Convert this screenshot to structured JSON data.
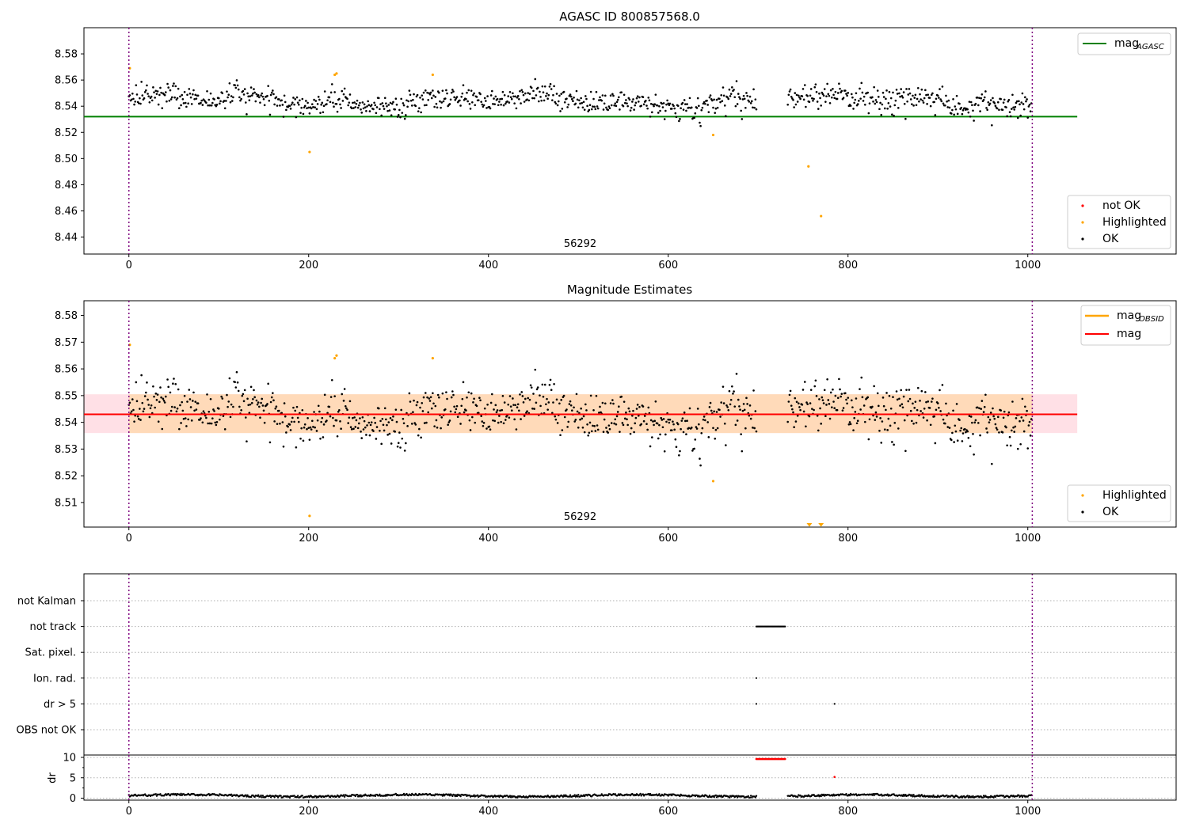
{
  "colors": {
    "ok": "#000000",
    "highlighted": "#ffa500",
    "not_ok": "#ff0000",
    "mag_agasc": "#008000",
    "mag_obsid": "#ffa500",
    "mag": "#ff0000",
    "band_inner": "#ffdab9",
    "band_outer": "#ffe0e6",
    "boundary": "#800080"
  },
  "chart_data": [
    {
      "type": "scatter",
      "title": "AGASC ID 800857568.0",
      "xlim": [
        -50,
        1165
      ],
      "ylim": [
        8.427,
        8.6
      ],
      "xticks": [
        0,
        200,
        400,
        600,
        800,
        1000
      ],
      "yticks": [
        8.44,
        8.46,
        8.48,
        8.5,
        8.52,
        8.54,
        8.56,
        8.58
      ],
      "ytick_labels": [
        "8.44",
        "8.46",
        "8.48",
        "8.50",
        "8.52",
        "8.54",
        "8.56",
        "8.58"
      ],
      "obsid_annotation": "56292",
      "obs_boundaries": [
        0,
        1005
      ],
      "mag_agasc": 8.532,
      "mag_agasc_x_range": [
        -50,
        1055
      ],
      "highlighted_points": [
        [
          1,
          8.569
        ],
        [
          201,
          8.505
        ],
        [
          229,
          8.564
        ],
        [
          231,
          8.565
        ],
        [
          338,
          8.564
        ],
        [
          650,
          8.518
        ],
        [
          756,
          8.494
        ],
        [
          770,
          8.456
        ]
      ],
      "ok_band": {
        "center": 8.544,
        "spread": 0.0065,
        "x_gap": [
          698,
          733
        ]
      },
      "legend_lines": {
        "mag_label": "mag",
        "mag_sub": "AGASC"
      },
      "legend_points": [
        "not OK",
        "Highlighted",
        "OK"
      ]
    },
    {
      "type": "scatter",
      "title": "Magnitude Estimates",
      "xlim": [
        -50,
        1165
      ],
      "ylim": [
        8.5008,
        8.5855
      ],
      "xticks": [
        0,
        200,
        400,
        600,
        800,
        1000
      ],
      "yticks": [
        8.51,
        8.52,
        8.53,
        8.54,
        8.55,
        8.56,
        8.57,
        8.58
      ],
      "obsid_annotation": "56292",
      "obs_boundaries": [
        0,
        1005
      ],
      "mag": 8.543,
      "mag_band_inner": [
        8.536,
        8.5505
      ],
      "mag_band_outer": [
        8.536,
        8.5505
      ],
      "band_x_range": [
        -50,
        1055
      ],
      "highlighted_points": [
        [
          1,
          8.569
        ],
        [
          229,
          8.564
        ],
        [
          231,
          8.565
        ],
        [
          338,
          8.564
        ],
        [
          650,
          8.518
        ],
        [
          201,
          8.505
        ]
      ],
      "out_of_range_markers": [
        757,
        770
      ],
      "ok_band": {
        "center": 8.543,
        "spread": 0.0065,
        "x_gap": [
          698,
          733
        ]
      },
      "legend_lines": {
        "obsid_label": "mag",
        "obsid_sub": "OBSID",
        "mag_label": "mag"
      },
      "legend_points": [
        "Highlighted",
        "OK"
      ]
    },
    {
      "type": "scatter",
      "title": "",
      "xlim": [
        -50,
        1165
      ],
      "category_labels": [
        "not Kalman",
        "not track",
        "Sat. pixel.",
        "Ion. rad.",
        "dr > 5",
        "OBS not OK"
      ],
      "not_track_range": [
        698,
        730
      ],
      "ion_rad_x": [
        698
      ],
      "dr_gt5_x": [
        698,
        785
      ],
      "obs_boundaries": [
        0,
        1005
      ]
    },
    {
      "type": "scatter",
      "title": "",
      "xlim": [
        -50,
        1165
      ],
      "ylim": [
        -0.5,
        11
      ],
      "xticks": [
        0,
        200,
        400,
        600,
        800,
        1000
      ],
      "yticks": [
        0,
        5,
        10
      ],
      "ylabel": "dr",
      "high_dr_range": [
        698,
        730
      ],
      "high_dr_value": 9.6,
      "outlier": [
        785,
        5.2
      ],
      "dr_gap": [
        698,
        733
      ],
      "obs_boundaries": [
        0,
        1005
      ]
    }
  ]
}
